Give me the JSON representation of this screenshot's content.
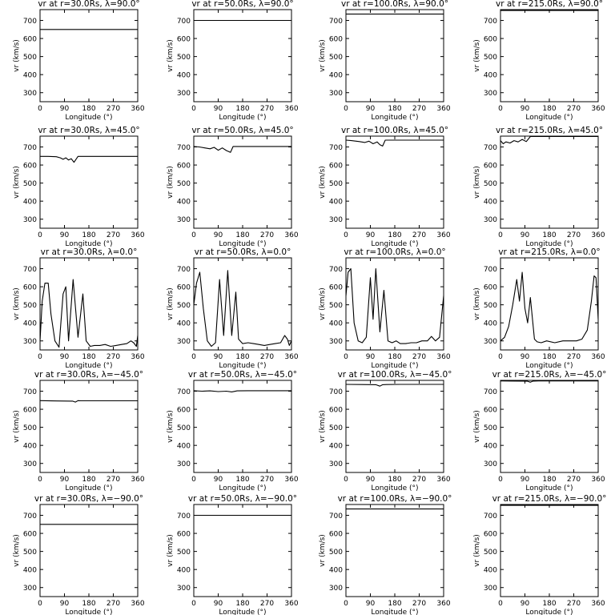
{
  "figure": {
    "shared_axes": {
      "xlabel": "Longitude (°)",
      "ylabel": "vr (km/s)",
      "xlim": [
        0,
        360
      ],
      "ylim": [
        250,
        760
      ],
      "xticks": [
        0,
        90,
        180,
        270,
        360
      ],
      "yticks": [
        300,
        400,
        500,
        600,
        700
      ]
    },
    "line_color": "#000000",
    "background": "#ffffff"
  },
  "chart_data": [
    {
      "type": "line",
      "title": "vr at r=30.0Rs, λ=90.0°",
      "xlabel": "Longitude (°)",
      "ylabel": "vr (km/s)",
      "xlim": [
        0,
        360
      ],
      "ylim": [
        250,
        760
      ],
      "series": [
        {
          "x": [
            0,
            360
          ],
          "y": [
            650,
            650
          ]
        }
      ]
    },
    {
      "type": "line",
      "title": "vr at r=50.0Rs, λ=90.0°",
      "xlabel": "Longitude (°)",
      "ylabel": "vr (km/s)",
      "xlim": [
        0,
        360
      ],
      "ylim": [
        250,
        760
      ],
      "series": [
        {
          "x": [
            0,
            360
          ],
          "y": [
            700,
            700
          ]
        }
      ]
    },
    {
      "type": "line",
      "title": "vr at r=100.0Rs, λ=90.0°",
      "xlabel": "Longitude (°)",
      "ylabel": "vr (km/s)",
      "xlim": [
        0,
        360
      ],
      "ylim": [
        250,
        760
      ],
      "series": [
        {
          "x": [
            0,
            360
          ],
          "y": [
            735,
            735
          ]
        }
      ]
    },
    {
      "type": "line",
      "title": "vr at r=215.0Rs, λ=90.0°",
      "xlabel": "Longitude (°)",
      "ylabel": "vr (km/s)",
      "xlim": [
        0,
        360
      ],
      "ylim": [
        250,
        760
      ],
      "series": [
        {
          "x": [
            0,
            360
          ],
          "y": [
            755,
            755
          ]
        }
      ]
    },
    {
      "type": "line",
      "title": "vr at r=30.0Rs, λ=45.0°",
      "xlabel": "Longitude (°)",
      "ylabel": "vr (km/s)",
      "xlim": [
        0,
        360
      ],
      "ylim": [
        250,
        760
      ],
      "series": [
        {
          "x": [
            0,
            30,
            60,
            75,
            85,
            95,
            105,
            115,
            125,
            140,
            360
          ],
          "y": [
            648,
            648,
            646,
            640,
            632,
            640,
            628,
            635,
            615,
            648,
            648
          ]
        }
      ]
    },
    {
      "type": "line",
      "title": "vr at r=50.0Rs, λ=45.0°",
      "xlabel": "Longitude (°)",
      "ylabel": "vr (km/s)",
      "xlim": [
        0,
        360
      ],
      "ylim": [
        250,
        760
      ],
      "series": [
        {
          "x": [
            0,
            20,
            40,
            60,
            75,
            90,
            105,
            120,
            135,
            145,
            360
          ],
          "y": [
            703,
            700,
            695,
            690,
            698,
            682,
            695,
            680,
            670,
            703,
            703
          ]
        }
      ]
    },
    {
      "type": "line",
      "title": "vr at r=100.0Rs, λ=45.0°",
      "xlabel": "Longitude (°)",
      "ylabel": "vr (km/s)",
      "xlim": [
        0,
        360
      ],
      "ylim": [
        250,
        760
      ],
      "series": [
        {
          "x": [
            0,
            20,
            50,
            70,
            85,
            100,
            115,
            125,
            135,
            145,
            360
          ],
          "y": [
            738,
            735,
            730,
            725,
            732,
            718,
            728,
            712,
            705,
            738,
            738
          ]
        }
      ]
    },
    {
      "type": "line",
      "title": "vr at r=215.0Rs, λ=45.0°",
      "xlabel": "Longitude (°)",
      "ylabel": "vr (km/s)",
      "xlim": [
        0,
        360
      ],
      "ylim": [
        250,
        760
      ],
      "series": [
        {
          "x": [
            0,
            10,
            20,
            35,
            50,
            65,
            80,
            95,
            110,
            360
          ],
          "y": [
            735,
            718,
            728,
            722,
            735,
            728,
            742,
            730,
            758,
            758
          ]
        }
      ]
    },
    {
      "type": "line",
      "title": "vr at r=30.0Rs, λ=0.0°",
      "xlabel": "Longitude (°)",
      "ylabel": "vr (km/s)",
      "xlim": [
        0,
        360
      ],
      "ylim": [
        250,
        760
      ],
      "series": [
        {
          "x": [
            0,
            8,
            18,
            30,
            40,
            55,
            70,
            85,
            95,
            105,
            122,
            140,
            158,
            170,
            185,
            200,
            220,
            240,
            260,
            280,
            300,
            320,
            335,
            345,
            355,
            360
          ],
          "y": [
            300,
            520,
            620,
            620,
            450,
            300,
            265,
            560,
            600,
            300,
            640,
            320,
            560,
            300,
            270,
            275,
            275,
            280,
            270,
            275,
            280,
            285,
            300,
            290,
            270,
            330
          ]
        }
      ]
    },
    {
      "type": "line",
      "title": "vr at r=50.0Rs, λ=0.0°",
      "xlabel": "Longitude (°)",
      "ylabel": "vr (km/s)",
      "xlim": [
        0,
        360
      ],
      "ylim": [
        250,
        760
      ],
      "series": [
        {
          "x": [
            0,
            10,
            22,
            35,
            50,
            65,
            80,
            95,
            110,
            125,
            140,
            155,
            165,
            180,
            200,
            220,
            240,
            260,
            280,
            300,
            320,
            335,
            345,
            352,
            360
          ],
          "y": [
            500,
            620,
            680,
            480,
            300,
            270,
            290,
            640,
            330,
            690,
            330,
            570,
            310,
            285,
            290,
            285,
            280,
            275,
            280,
            285,
            290,
            330,
            310,
            275,
            300
          ]
        }
      ]
    },
    {
      "type": "line",
      "title": "vr at r=100.0Rs, λ=0.0°",
      "xlabel": "Longitude (°)",
      "ylabel": "vr (km/s)",
      "xlim": [
        0,
        360
      ],
      "ylim": [
        250,
        760
      ],
      "series": [
        {
          "x": [
            0,
            8,
            18,
            30,
            45,
            60,
            75,
            90,
            100,
            110,
            125,
            140,
            155,
            170,
            185,
            200,
            220,
            240,
            260,
            280,
            300,
            315,
            330,
            345,
            360
          ],
          "y": [
            550,
            680,
            700,
            400,
            300,
            290,
            320,
            650,
            420,
            700,
            350,
            580,
            300,
            290,
            300,
            285,
            285,
            290,
            290,
            300,
            300,
            325,
            300,
            320,
            550
          ]
        }
      ]
    },
    {
      "type": "line",
      "title": "vr at r=215.0Rs, λ=0.0°",
      "xlabel": "Longitude (°)",
      "ylabel": "vr (km/s)",
      "xlim": [
        0,
        360
      ],
      "ylim": [
        250,
        760
      ],
      "series": [
        {
          "x": [
            0,
            15,
            30,
            45,
            60,
            70,
            80,
            90,
            100,
            110,
            125,
            135,
            150,
            170,
            200,
            230,
            260,
            280,
            300,
            320,
            335,
            345,
            352,
            360
          ],
          "y": [
            300,
            320,
            380,
            500,
            640,
            520,
            680,
            480,
            400,
            540,
            310,
            295,
            290,
            300,
            290,
            300,
            300,
            300,
            310,
            360,
            520,
            660,
            650,
            420
          ]
        }
      ]
    },
    {
      "type": "line",
      "title": "vr at r=30.0Rs, λ=−45.0°",
      "xlabel": "Longitude (°)",
      "ylabel": "vr (km/s)",
      "xlim": [
        0,
        360
      ],
      "ylim": [
        250,
        760
      ],
      "series": [
        {
          "x": [
            0,
            60,
            120,
            130,
            140,
            150,
            360
          ],
          "y": [
            648,
            646,
            645,
            640,
            648,
            647,
            647
          ]
        }
      ]
    },
    {
      "type": "line",
      "title": "vr at r=50.0Rs, λ=−45.0°",
      "xlabel": "Longitude (°)",
      "ylabel": "vr (km/s)",
      "xlim": [
        0,
        360
      ],
      "ylim": [
        250,
        760
      ],
      "series": [
        {
          "x": [
            0,
            30,
            60,
            90,
            120,
            140,
            160,
            200,
            360
          ],
          "y": [
            703,
            700,
            702,
            698,
            700,
            696,
            702,
            703,
            703
          ]
        }
      ]
    },
    {
      "type": "line",
      "title": "vr at r=100.0Rs, λ=−45.0°",
      "xlabel": "Longitude (°)",
      "ylabel": "vr (km/s)",
      "xlim": [
        0,
        360
      ],
      "ylim": [
        250,
        760
      ],
      "series": [
        {
          "x": [
            0,
            60,
            110,
            125,
            135,
            150,
            200,
            360
          ],
          "y": [
            738,
            737,
            736,
            728,
            736,
            737,
            738,
            738
          ]
        }
      ]
    },
    {
      "type": "line",
      "title": "vr at r=215.0Rs, λ=−45.0°",
      "xlabel": "Longitude (°)",
      "ylabel": "vr (km/s)",
      "xlim": [
        0,
        360
      ],
      "ylim": [
        250,
        760
      ],
      "series": [
        {
          "x": [
            0,
            80,
            100,
            110,
            120,
            140,
            360
          ],
          "y": [
            757,
            756,
            755,
            750,
            756,
            757,
            757
          ]
        }
      ]
    },
    {
      "type": "line",
      "title": "vr at r=30.0Rs, λ=−90.0°",
      "xlabel": "Longitude (°)",
      "ylabel": "vr (km/s)",
      "xlim": [
        0,
        360
      ],
      "ylim": [
        250,
        760
      ],
      "series": [
        {
          "x": [
            0,
            360
          ],
          "y": [
            650,
            650
          ]
        }
      ]
    },
    {
      "type": "line",
      "title": "vr at r=50.0Rs, λ=−90.0°",
      "xlabel": "Longitude (°)",
      "ylabel": "vr (km/s)",
      "xlim": [
        0,
        360
      ],
      "ylim": [
        250,
        760
      ],
      "series": [
        {
          "x": [
            0,
            360
          ],
          "y": [
            700,
            700
          ]
        }
      ]
    },
    {
      "type": "line",
      "title": "vr at r=100.0Rs, λ=−90.0°",
      "xlabel": "Longitude (°)",
      "ylabel": "vr (km/s)",
      "xlim": [
        0,
        360
      ],
      "ylim": [
        250,
        760
      ],
      "series": [
        {
          "x": [
            0,
            360
          ],
          "y": [
            735,
            735
          ]
        }
      ]
    },
    {
      "type": "line",
      "title": "vr at r=215.0Rs, λ=−90.0°",
      "xlabel": "Longitude (°)",
      "ylabel": "vr (km/s)",
      "xlim": [
        0,
        360
      ],
      "ylim": [
        250,
        760
      ],
      "series": [
        {
          "x": [
            0,
            360
          ],
          "y": [
            755,
            755
          ]
        }
      ]
    }
  ]
}
